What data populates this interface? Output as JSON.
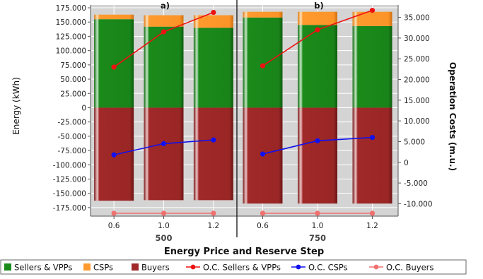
{
  "chart_data": {
    "type": "bar",
    "panels": [
      {
        "label": "a)",
        "group": "500",
        "categories": [
          "0.6",
          "1.0",
          "1.2"
        ]
      },
      {
        "label": "b)",
        "group": "750",
        "categories": [
          "0.6",
          "1.0",
          "1.2"
        ]
      }
    ],
    "xlabel": "Energy Price and Reserve Step",
    "ylabel_left": "Energy (kWh)",
    "ylabel_right": "Operation Costs (m.u.)",
    "ylim_left": [
      -190000,
      180000
    ],
    "ylim_right": [
      -13000,
      38000
    ],
    "yticks_left": [
      175000,
      150000,
      125000,
      100000,
      75000,
      50000,
      25000,
      0,
      -25000,
      -50000,
      -75000,
      -100000,
      -125000,
      -150000,
      -175000
    ],
    "yticks_left_labels": [
      "175.000",
      "150.000",
      "125.000",
      "100.000",
      "75.000",
      "50.000",
      "25.000",
      "0",
      "-25.000",
      "-50.000",
      "-75.000",
      "-100.000",
      "-125.000",
      "-150.000",
      "-175.000"
    ],
    "yticks_right": [
      35000,
      30000,
      25000,
      20000,
      15000,
      10000,
      5000,
      0,
      -5000,
      -10000
    ],
    "yticks_right_labels": [
      "35.000",
      "30.000",
      "25.000",
      "20.000",
      "15.000",
      "10.000",
      "5.000",
      "0",
      "-5.000",
      "-10.000"
    ],
    "grid": true,
    "legend_position": "bottom",
    "series": [
      {
        "name": "Sellers & VPPs",
        "kind": "bar",
        "axis": "left",
        "color": "#1a8a1a",
        "values": [
          155000,
          142000,
          140000,
          158000,
          145000,
          143000
        ]
      },
      {
        "name": "CSPs",
        "kind": "bar",
        "axis": "left",
        "color": "#ff9a2e",
        "values": [
          8000,
          20000,
          22000,
          10000,
          23000,
          25000
        ]
      },
      {
        "name": "Buyers",
        "kind": "bar",
        "axis": "left",
        "color": "#a02828",
        "values": [
          -163000,
          -162000,
          -162000,
          -168000,
          -168000,
          -168000
        ]
      },
      {
        "name": "O.C. Sellers & VPPs",
        "kind": "line",
        "axis": "right",
        "color": "#ee1111",
        "values": [
          23000,
          31500,
          36200,
          23300,
          32000,
          36700
        ]
      },
      {
        "name": "O.C. CSPs",
        "kind": "line",
        "axis": "right",
        "color": "#1111ee",
        "values": [
          1800,
          4500,
          5400,
          2000,
          5200,
          6000
        ]
      },
      {
        "name": "O.C. Buyers",
        "kind": "line",
        "axis": "right",
        "color": "#f07070",
        "values": [
          -12300,
          -12300,
          -12300,
          -12300,
          -12300,
          -12300
        ]
      }
    ]
  }
}
